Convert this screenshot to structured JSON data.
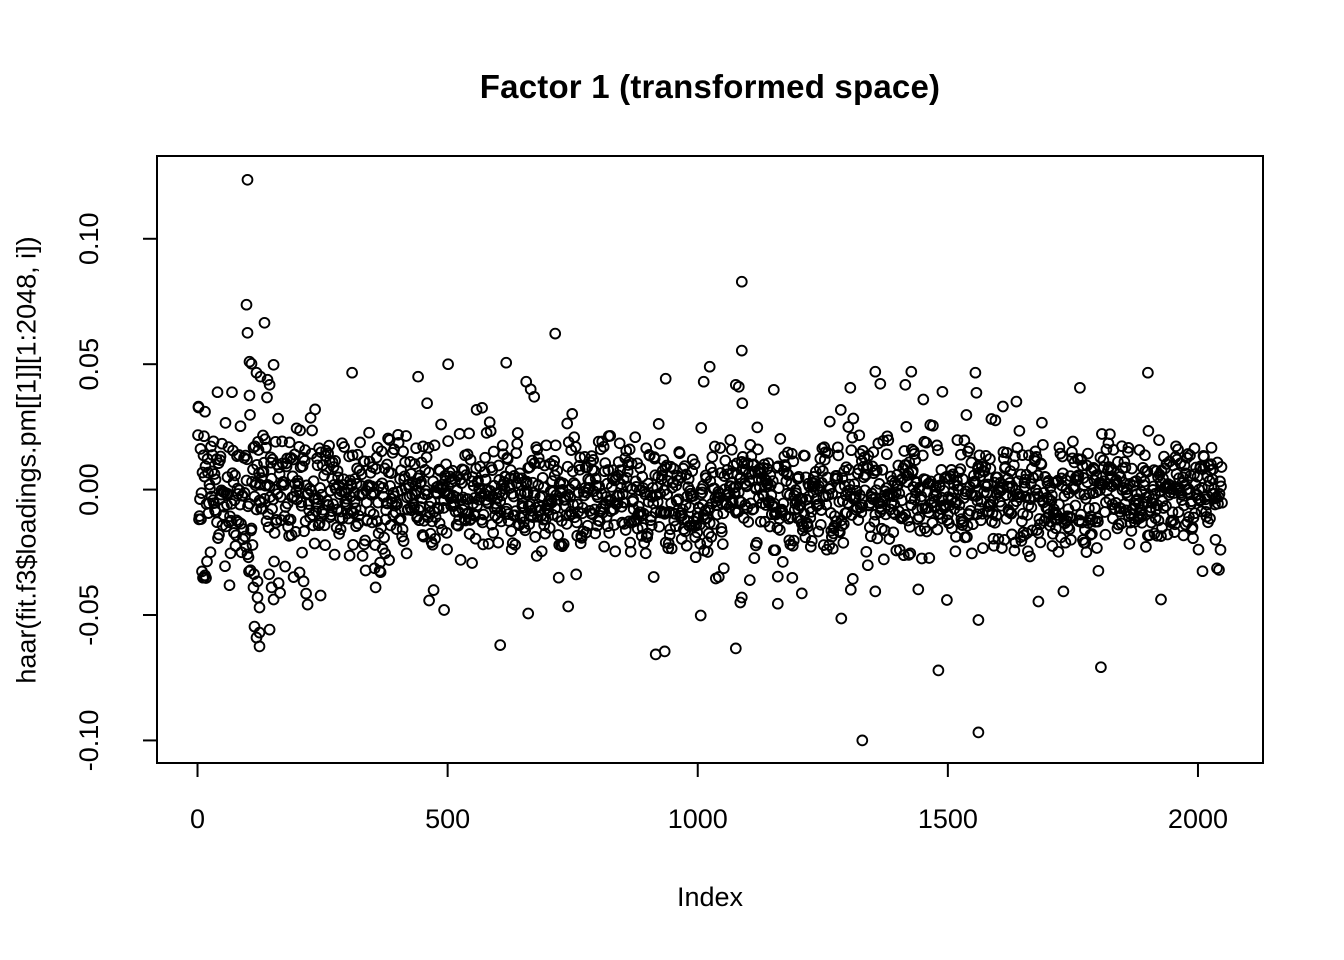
{
  "page": {
    "background": "#ffffff",
    "ink_color": "#000000"
  },
  "chart_data": {
    "type": "scatter",
    "title": "Factor 1 (transformed space)",
    "xlabel": "Index",
    "ylabel": "haar(fit.f3$loadings.pm[[1]][1:2048, i])",
    "marker": "open-circle",
    "marker_color": "#000000",
    "background": "#ffffff",
    "grid": false,
    "legend": false,
    "n_points": 2048,
    "x_range": [
      1,
      2048
    ],
    "xlim": [
      -81,
      2130
    ],
    "ylim": [
      -0.109,
      0.133
    ],
    "x_ticks": [
      0,
      500,
      1000,
      1500,
      2000
    ],
    "x_tick_labels": [
      "0",
      "500",
      "1000",
      "1500",
      "2000"
    ],
    "y_ticks": [
      -0.1,
      -0.05,
      0.0,
      0.05,
      0.1
    ],
    "y_tick_labels": [
      "-0.10",
      "-0.05",
      "0.00",
      "0.05",
      "0.10"
    ],
    "band": {
      "center": -0.002,
      "sd_base": 0.0112,
      "sd_left_boost": 0.0075,
      "left_decay": 140,
      "tail_fraction": 0.12,
      "tail_scale": 1.85,
      "clamp": 0.0515,
      "seed": 1234
    },
    "outliers": [
      [
        2,
        0.0331
      ],
      [
        100,
        0.1235
      ],
      [
        98,
        0.0737
      ],
      [
        134,
        0.0665
      ],
      [
        100,
        0.0625
      ],
      [
        104,
        0.051
      ],
      [
        108,
        0.0502
      ],
      [
        118,
        0.0466
      ],
      [
        126,
        0.045
      ],
      [
        140,
        0.0438
      ],
      [
        144,
        0.0418
      ],
      [
        104,
        0.0375
      ],
      [
        13,
        -0.035
      ],
      [
        15,
        -0.0342
      ],
      [
        112,
        -0.039
      ],
      [
        120,
        -0.043
      ],
      [
        124,
        -0.047
      ],
      [
        114,
        -0.0546
      ],
      [
        124,
        -0.057
      ],
      [
        118,
        -0.059
      ],
      [
        124,
        -0.0625
      ],
      [
        144,
        -0.0558
      ],
      [
        148,
        -0.039
      ],
      [
        152,
        -0.0438
      ],
      [
        309,
        0.0466
      ],
      [
        441,
        0.045
      ],
      [
        501,
        0.05
      ],
      [
        617,
        0.0506
      ],
      [
        657,
        0.043
      ],
      [
        666,
        0.04
      ],
      [
        673,
        0.037
      ],
      [
        715,
        0.0622
      ],
      [
        936,
        0.0442
      ],
      [
        1012,
        0.043
      ],
      [
        1024,
        0.049
      ],
      [
        1076,
        0.0418
      ],
      [
        1082,
        0.041
      ],
      [
        1088,
        0.0829
      ],
      [
        1088,
        0.0554
      ],
      [
        1152,
        0.0398
      ],
      [
        1305,
        0.0406
      ],
      [
        1355,
        0.047
      ],
      [
        1365,
        0.0422
      ],
      [
        1415,
        0.0418
      ],
      [
        1427,
        0.047
      ],
      [
        1489,
        0.039
      ],
      [
        1555,
        0.0466
      ],
      [
        1557,
        0.0386
      ],
      [
        1637,
        0.0351
      ],
      [
        1764,
        0.0406
      ],
      [
        1900,
        0.0466
      ],
      [
        463,
        -0.0442
      ],
      [
        493,
        -0.048
      ],
      [
        605,
        -0.062
      ],
      [
        661,
        -0.0494
      ],
      [
        741,
        -0.0466
      ],
      [
        916,
        -0.0657
      ],
      [
        934,
        -0.0645
      ],
      [
        1006,
        -0.0502
      ],
      [
        1076,
        -0.0633
      ],
      [
        1088,
        -0.043
      ],
      [
        1160,
        -0.0455
      ],
      [
        1208,
        -0.0414
      ],
      [
        1287,
        -0.0514
      ],
      [
        1329,
        -0.1
      ],
      [
        1355,
        -0.0406
      ],
      [
        1481,
        -0.0721
      ],
      [
        1561,
        -0.052
      ],
      [
        1561,
        -0.0968
      ],
      [
        1681,
        -0.0446
      ],
      [
        1806,
        -0.0708
      ],
      [
        1926,
        -0.0438
      ]
    ]
  }
}
